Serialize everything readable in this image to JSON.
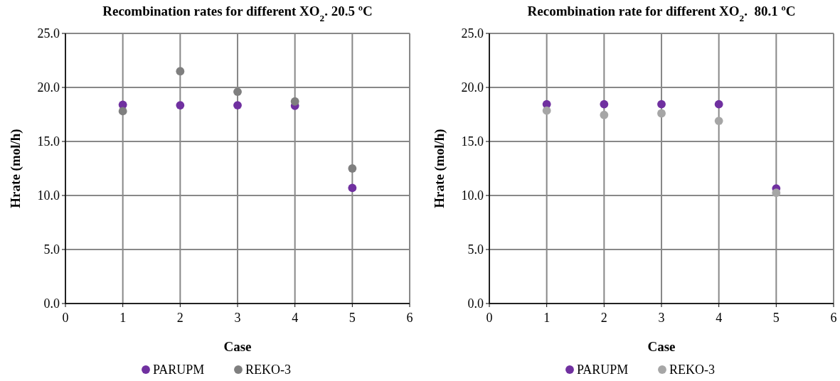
{
  "chart_data": [
    {
      "type": "scatter",
      "title": "Recombination rates for different XO$_{2}$. 20.5 ºC",
      "xlabel": "Case",
      "ylabel": "Hrate (mol/h)",
      "xlim": [
        0,
        6
      ],
      "xticks": [
        0,
        1,
        2,
        3,
        4,
        5,
        6
      ],
      "ylim": [
        0,
        25
      ],
      "yticks": [
        {
          "value": 0,
          "label": "0.0"
        },
        {
          "value": 5,
          "label": "5.0"
        },
        {
          "value": 10,
          "label": "10.0"
        },
        {
          "value": 15,
          "label": "15.0"
        },
        {
          "value": 20,
          "label": "20.0"
        },
        {
          "value": 25,
          "label": "25.0"
        }
      ],
      "grid": true,
      "legend": "bottom",
      "marker": "circle",
      "x": [
        1,
        2,
        3,
        4,
        5
      ],
      "series": [
        {
          "name": "PARUPM",
          "color": "#7030a0",
          "values": [
            18.4,
            18.35,
            18.35,
            18.3,
            10.7
          ]
        },
        {
          "name": "REKO-3",
          "color": "#7f7f7f",
          "values": [
            17.8,
            21.5,
            19.6,
            18.7,
            12.5
          ]
        }
      ]
    },
    {
      "type": "scatter",
      "title": "Recombination rate for different XO$_{2}$.  80.1 ºC",
      "xlabel": "Case",
      "ylabel": "Hrate (mol/h)",
      "xlim": [
        0,
        6
      ],
      "xticks": [
        0,
        1,
        2,
        3,
        4,
        5,
        6
      ],
      "ylim": [
        0,
        25
      ],
      "yticks": [
        {
          "value": 0,
          "label": "0.0"
        },
        {
          "value": 5,
          "label": "5.0"
        },
        {
          "value": 10,
          "label": "10.0"
        },
        {
          "value": 15,
          "label": "15.0"
        },
        {
          "value": 20,
          "label": "20.0"
        },
        {
          "value": 25,
          "label": "25.0"
        }
      ],
      "grid": true,
      "legend": "bottom",
      "marker": "circle",
      "x": [
        1,
        2,
        3,
        4,
        5
      ],
      "series": [
        {
          "name": "PARUPM",
          "color": "#7030a0",
          "values": [
            18.45,
            18.45,
            18.45,
            18.45,
            10.65
          ]
        },
        {
          "name": "REKO-3",
          "color": "#a6a6a6",
          "values": [
            17.85,
            17.45,
            17.6,
            16.9,
            10.25
          ]
        }
      ]
    }
  ]
}
